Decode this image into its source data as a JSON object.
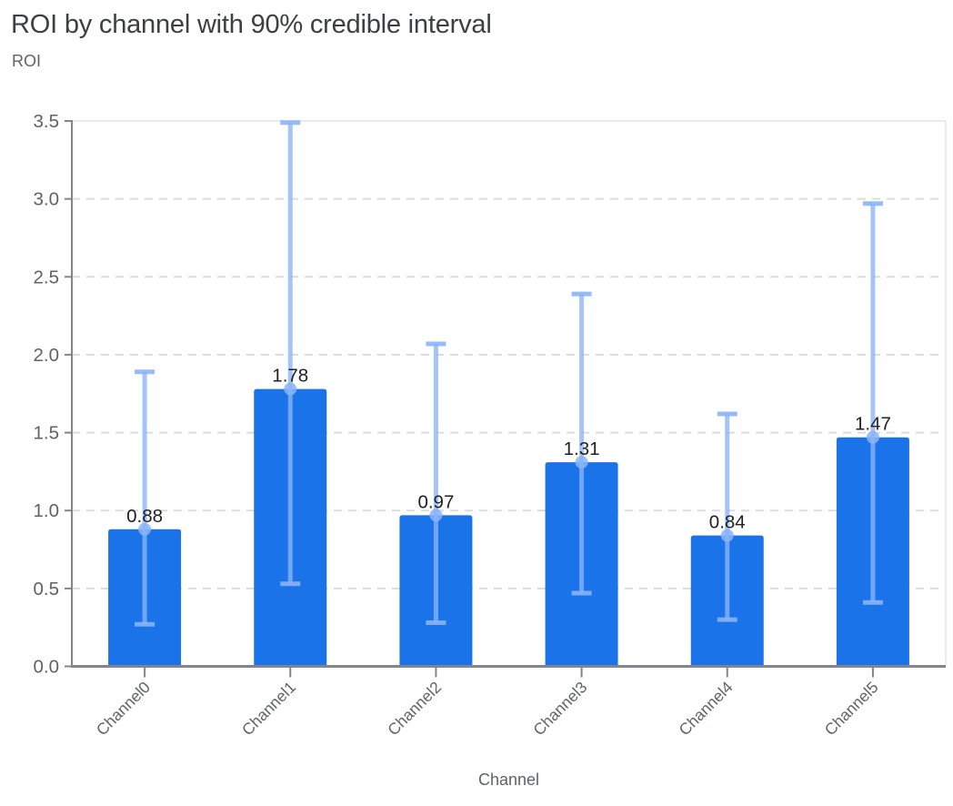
{
  "chart_data": {
    "type": "bar",
    "title": "ROI by channel with 90% credible interval",
    "ylabel": "ROI",
    "xlabel": "Channel",
    "categories": [
      "Channel0",
      "Channel1",
      "Channel2",
      "Channel3",
      "Channel4",
      "Channel5"
    ],
    "values": [
      0.88,
      1.78,
      0.97,
      1.31,
      0.84,
      1.47
    ],
    "value_labels": [
      "0.88",
      "1.78",
      "0.97",
      "1.31",
      "0.84",
      "1.47"
    ],
    "ci_low": [
      0.27,
      0.53,
      0.28,
      0.47,
      0.3,
      0.41
    ],
    "ci_high": [
      1.89,
      3.49,
      2.07,
      2.39,
      1.62,
      2.97
    ],
    "ylim": [
      0,
      3.5
    ],
    "ytick_step": 0.5,
    "ytick_labels": [
      "0.0",
      "0.5",
      "1.0",
      "1.5",
      "2.0",
      "2.5",
      "3.0",
      "3.5"
    ],
    "grid": "horizontal-dashed",
    "legend": "none",
    "colors": {
      "bar": "#1a73e8",
      "interval": "#8ab4f8",
      "axis": "#80868b",
      "gridline": "#dadce0",
      "plot_border": "#e8eaed",
      "title_text": "#3c4043",
      "axis_text": "#5f6368",
      "value_label_text": "#202124"
    }
  }
}
